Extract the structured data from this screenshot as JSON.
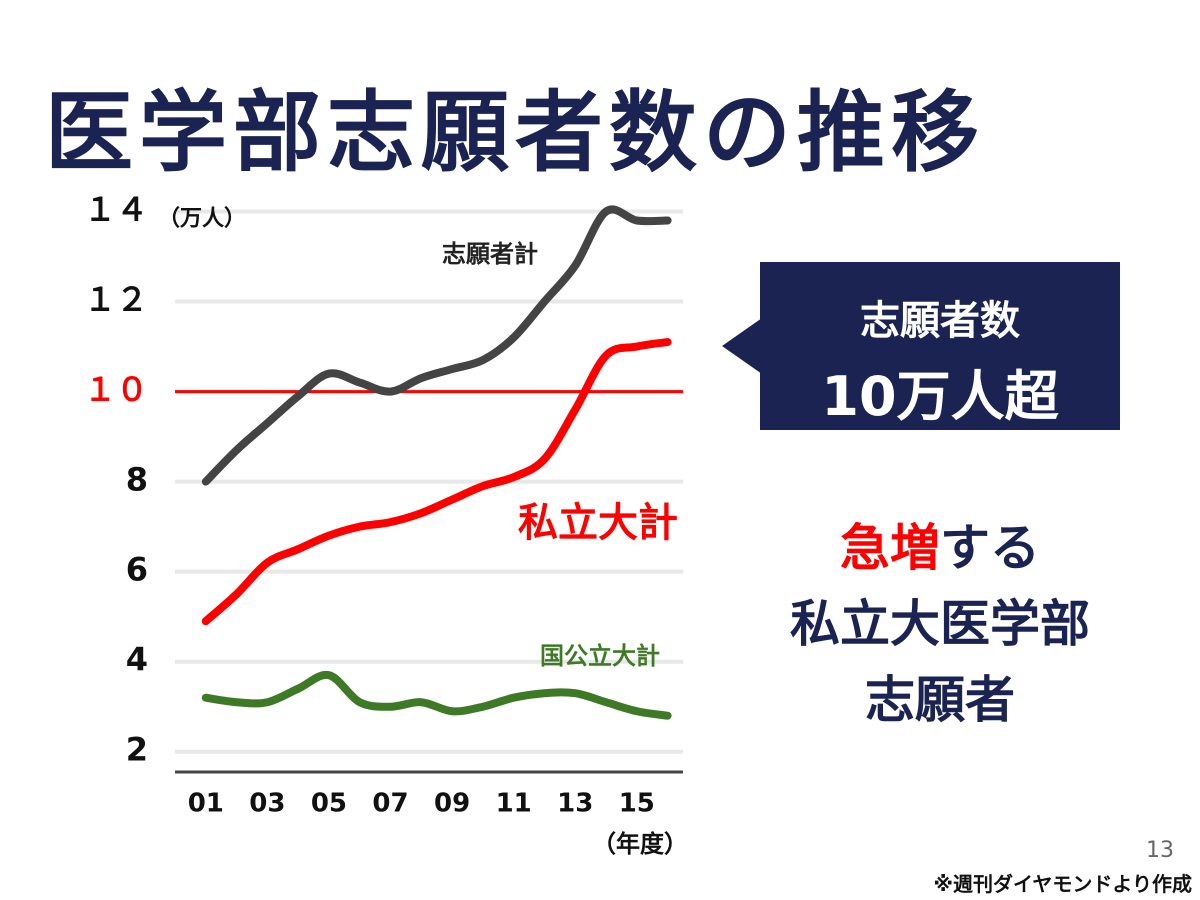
{
  "title": "医学部志願者数の推移",
  "chart_data": {
    "type": "line",
    "y_unit": "（万人）",
    "x_unit": "（年度）",
    "x": [
      2001,
      2002,
      2003,
      2004,
      2005,
      2006,
      2007,
      2008,
      2009,
      2010,
      2011,
      2012,
      2013,
      2014,
      2015,
      2016
    ],
    "series": [
      {
        "name": "志願者計",
        "color": "#444444",
        "values": [
          8.0,
          8.7,
          9.3,
          9.9,
          10.4,
          10.2,
          10.0,
          10.3,
          10.5,
          10.7,
          11.2,
          12.0,
          12.8,
          14.0,
          13.8,
          13.8
        ]
      },
      {
        "name": "私立大計",
        "color": "#ff0000",
        "values": [
          4.9,
          5.5,
          6.2,
          6.5,
          6.8,
          7.0,
          7.1,
          7.3,
          7.6,
          7.9,
          8.1,
          8.5,
          9.6,
          10.8,
          11.0,
          11.1
        ]
      },
      {
        "name": "国公立大計",
        "color": "#3e7a26",
        "values": [
          3.2,
          3.1,
          3.1,
          3.4,
          3.7,
          3.1,
          3.0,
          3.1,
          2.9,
          3.0,
          3.2,
          3.3,
          3.3,
          3.1,
          2.9,
          2.8
        ]
      }
    ],
    "xlim": [
      2000,
      2016.5
    ],
    "xticks": [
      {
        "value": 2001,
        "label": "01"
      },
      {
        "value": 2003,
        "label": "03"
      },
      {
        "value": 2005,
        "label": "05"
      },
      {
        "value": 2007,
        "label": "07"
      },
      {
        "value": 2009,
        "label": "09"
      },
      {
        "value": 2011,
        "label": "11"
      },
      {
        "value": 2013,
        "label": "13"
      },
      {
        "value": 2015,
        "label": "15"
      }
    ],
    "ylim": [
      1.55,
      14.3
    ],
    "yticks": [
      2,
      4,
      6,
      8,
      {
        "value": 10,
        "label": "１０"
      },
      {
        "value": 12,
        "label": "１２"
      },
      {
        "value": 14,
        "label": "１４"
      }
    ],
    "grid": true,
    "reference_line": {
      "value": 10,
      "color": "#ff0000"
    }
  },
  "callout": {
    "line1": "志願者数",
    "line2": "10万人超"
  },
  "side_text": {
    "highlight": "急増",
    "rest": "する",
    "line2": "私立大医学部",
    "line3": "志願者"
  },
  "page_number": "13",
  "source": "※週刊ダイヤモンドより作成"
}
